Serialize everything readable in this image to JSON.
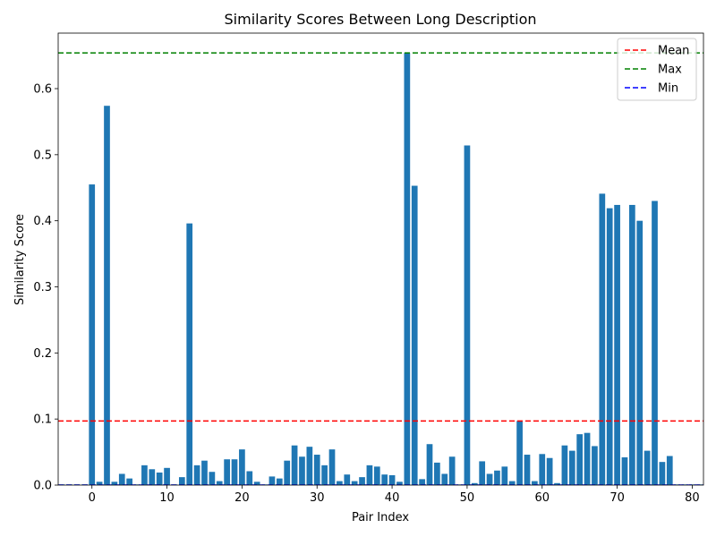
{
  "chart_data": {
    "type": "bar",
    "title": "Similarity Scores Between Long Description",
    "xlabel": "Pair Index",
    "ylabel": "Similarity Score",
    "xlim": [
      -4.5,
      81.5
    ],
    "ylim": [
      0,
      0.684
    ],
    "xticks": [
      0,
      10,
      20,
      30,
      40,
      50,
      60,
      70,
      80
    ],
    "xtick_labels": [
      "0",
      "10",
      "20",
      "30",
      "40",
      "50",
      "60",
      "70",
      "80"
    ],
    "yticks": [
      0.0,
      0.1,
      0.2,
      0.3,
      0.4,
      0.5,
      0.6
    ],
    "ytick_labels": [
      "0.0",
      "0.1",
      "0.2",
      "0.3",
      "0.4",
      "0.5",
      "0.6"
    ],
    "bar_color": "#1f77b4",
    "x": [
      -4,
      -3,
      -2,
      -1,
      0,
      1,
      2,
      3,
      4,
      5,
      6,
      7,
      8,
      9,
      10,
      11,
      12,
      13,
      14,
      15,
      16,
      17,
      18,
      19,
      20,
      21,
      22,
      23,
      24,
      25,
      26,
      27,
      28,
      29,
      30,
      31,
      32,
      33,
      34,
      35,
      36,
      37,
      38,
      39,
      40,
      41,
      42,
      43,
      44,
      45,
      46,
      47,
      48,
      49,
      50,
      51,
      52,
      53,
      54,
      55,
      56,
      57,
      58,
      59,
      60,
      61,
      62,
      63,
      64,
      65,
      66,
      67,
      68,
      69,
      70,
      71,
      72,
      73,
      74,
      75,
      76,
      77,
      78,
      79,
      80,
      81
    ],
    "values": [
      0.001,
      0.001,
      0.001,
      0.001,
      0.455,
      0.005,
      0.574,
      0.005,
      0.017,
      0.01,
      0.001,
      0.03,
      0.024,
      0.019,
      0.026,
      0.001,
      0.012,
      0.396,
      0.03,
      0.037,
      0.02,
      0.006,
      0.039,
      0.039,
      0.054,
      0.021,
      0.005,
      0.001,
      0.013,
      0.01,
      0.037,
      0.06,
      0.043,
      0.058,
      0.046,
      0.03,
      0.054,
      0.006,
      0.016,
      0.006,
      0.012,
      0.03,
      0.028,
      0.016,
      0.015,
      0.005,
      0.654,
      0.453,
      0.009,
      0.062,
      0.034,
      0.017,
      0.043,
      0.001,
      0.514,
      0.003,
      0.036,
      0.017,
      0.022,
      0.028,
      0.006,
      0.097,
      0.046,
      0.006,
      0.047,
      0.041,
      0.003,
      0.06,
      0.052,
      0.077,
      0.079,
      0.059,
      0.441,
      0.419,
      0.424,
      0.042,
      0.424,
      0.4,
      0.052,
      0.43,
      0.035,
      0.044,
      0.001,
      0.001,
      0.001,
      0.001
    ],
    "reference_lines": [
      {
        "name": "Mean",
        "value": 0.097,
        "color": "#ff0000",
        "style": "dashed"
      },
      {
        "name": "Max",
        "value": 0.654,
        "color": "#008000",
        "style": "dashed"
      },
      {
        "name": "Min",
        "value": 0.0,
        "color": "#0000ff",
        "style": "dashed"
      }
    ],
    "legend": {
      "position": "top-right",
      "entries": [
        "Mean",
        "Max",
        "Min"
      ]
    },
    "grid": false
  }
}
